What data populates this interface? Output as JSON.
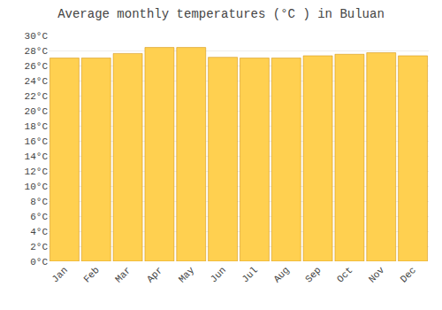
{
  "chart_data": {
    "type": "bar",
    "title": "Average monthly temperatures (°C ) in Buluan",
    "categories": [
      "Jan",
      "Feb",
      "Mar",
      "Apr",
      "May",
      "Jun",
      "Jul",
      "Aug",
      "Sep",
      "Oct",
      "Nov",
      "Dec"
    ],
    "values": [
      27.0,
      27.0,
      27.6,
      28.4,
      28.4,
      27.1,
      27.0,
      27.0,
      27.3,
      27.5,
      27.7,
      27.3
    ],
    "color": "#FFD050",
    "ylim": [
      0,
      30
    ],
    "yticks": [
      {
        "value": 0,
        "label": "0°C"
      },
      {
        "value": 2,
        "label": "2°C"
      },
      {
        "value": 4,
        "label": "4°C"
      },
      {
        "value": 6,
        "label": "6°C"
      },
      {
        "value": 8,
        "label": "8°C"
      },
      {
        "value": 10,
        "label": "10°C"
      },
      {
        "value": 12,
        "label": "12°C"
      },
      {
        "value": 14,
        "label": "14°C"
      },
      {
        "value": 16,
        "label": "16°C"
      },
      {
        "value": 18,
        "label": "18°C"
      },
      {
        "value": 20,
        "label": "20°C"
      },
      {
        "value": 22,
        "label": "22°C"
      },
      {
        "value": 24,
        "label": "24°C"
      },
      {
        "value": 26,
        "label": "26°C"
      },
      {
        "value": 28,
        "label": "28°C"
      },
      {
        "value": 30,
        "label": "30°C"
      }
    ],
    "grid": true
  }
}
